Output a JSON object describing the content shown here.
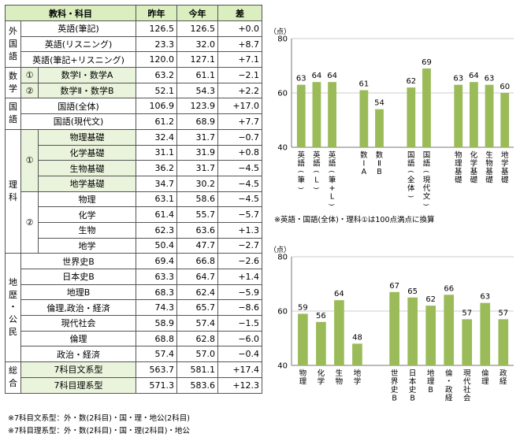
{
  "table": {
    "headers": [
      "教科・科目",
      "昨年",
      "今年",
      "差"
    ],
    "groups": [
      {
        "label": "外国語",
        "rows": [
          {
            "name": "英語(筆記)",
            "last": "126.5",
            "this": "126.5",
            "diff": "+0.0"
          },
          {
            "name": "英語(リスニング)",
            "last": "23.3",
            "this": "32.0",
            "diff": "+8.7"
          },
          {
            "name": "英語(筆記+リスニング)",
            "last": "120.0",
            "this": "127.1",
            "diff": "+7.1"
          }
        ]
      },
      {
        "label": "数学",
        "shaded": true,
        "rows": [
          {
            "mark": "①",
            "name": "数学Ⅰ・数学A",
            "last": "63.2",
            "this": "61.1",
            "diff": "−2.1"
          },
          {
            "mark": "②",
            "name": "数学Ⅱ・数学B",
            "last": "52.1",
            "this": "54.3",
            "diff": "+2.2"
          }
        ]
      },
      {
        "label": "国語",
        "rows": [
          {
            "name": "国語(全体)",
            "last": "106.9",
            "this": "123.9",
            "diff": "+17.0"
          },
          {
            "name": "国語(現代文)",
            "last": "61.2",
            "this": "68.9",
            "diff": "+7.7"
          }
        ]
      },
      {
        "label": "理科",
        "subgroups": [
          {
            "mark": "①",
            "shaded": true,
            "rows": [
              {
                "name": "物理基礎",
                "last": "32.4",
                "this": "31.7",
                "diff": "−0.7"
              },
              {
                "name": "化学基礎",
                "last": "31.1",
                "this": "31.9",
                "diff": "+0.8"
              },
              {
                "name": "生物基礎",
                "last": "36.2",
                "this": "31.7",
                "diff": "−4.5"
              },
              {
                "name": "地学基礎",
                "last": "34.7",
                "this": "30.2",
                "diff": "−4.5"
              }
            ]
          },
          {
            "mark": "②",
            "shaded": false,
            "rows": [
              {
                "name": "物理",
                "last": "63.1",
                "this": "58.6",
                "diff": "−4.5"
              },
              {
                "name": "化学",
                "last": "61.4",
                "this": "55.7",
                "diff": "−5.7"
              },
              {
                "name": "生物",
                "last": "62.3",
                "this": "63.6",
                "diff": "+1.3"
              },
              {
                "name": "地学",
                "last": "50.4",
                "this": "47.7",
                "diff": "−2.7"
              }
            ]
          }
        ]
      },
      {
        "label": "地歴・公民",
        "rows": [
          {
            "name": "世界史B",
            "last": "69.4",
            "this": "66.8",
            "diff": "−2.6"
          },
          {
            "name": "日本史B",
            "last": "63.3",
            "this": "64.7",
            "diff": "+1.4"
          },
          {
            "name": "地理B",
            "last": "68.3",
            "this": "62.4",
            "diff": "−5.9"
          },
          {
            "name": "倫理,政治・経済",
            "last": "74.3",
            "this": "65.7",
            "diff": "−8.6"
          },
          {
            "name": "現代社会",
            "last": "58.9",
            "this": "57.4",
            "diff": "−1.5"
          },
          {
            "name": "倫理",
            "last": "68.8",
            "this": "62.8",
            "diff": "−6.0"
          },
          {
            "name": "政治・経済",
            "last": "57.4",
            "this": "57.0",
            "diff": "−0.4"
          }
        ]
      },
      {
        "label": "総合",
        "shaded": true,
        "rows": [
          {
            "name": "7科目文系型",
            "last": "563.7",
            "this": "581.1",
            "diff": "+17.4"
          },
          {
            "name": "7科目理系型",
            "last": "571.3",
            "this": "583.6",
            "diff": "+12.3"
          }
        ]
      }
    ],
    "footnotes": [
      "※7科目文系型：外・数(2科目)・国・理・地公(2科目)",
      "※7科目理系型：外・数(2科目)・国・理(2科目)・地公"
    ]
  },
  "chart_note": "※英語・国語(全体)・理科①は100点満点に換算",
  "colors": {
    "bar": "#9bbb59",
    "header": "#daeec0",
    "shade": "#eaf3dc"
  },
  "chart_data": [
    {
      "type": "bar",
      "unit": "（点）",
      "ylim": [
        40,
        80
      ],
      "yticks": [
        40,
        60,
        80
      ],
      "bars": [
        {
          "label": "英語(筆)",
          "value": 63
        },
        {
          "label": "英語(L)",
          "value": 64
        },
        {
          "label": "英語(筆+L)",
          "value": 64
        },
        {
          "label": "数ⅠA",
          "value": 61
        },
        {
          "label": "数ⅡB",
          "value": 54
        },
        {
          "label": "国語(全体)",
          "value": 62
        },
        {
          "label": "国語(現代文)",
          "value": 69
        },
        {
          "label": "物理基礎",
          "value": 63
        },
        {
          "label": "化学基礎",
          "value": 64
        },
        {
          "label": "生物基礎",
          "value": 63
        },
        {
          "label": "地学基礎",
          "value": 60
        }
      ],
      "gaps_after": [
        2,
        4,
        6
      ]
    },
    {
      "type": "bar",
      "unit": "（点）",
      "ylim": [
        40,
        80
      ],
      "yticks": [
        40,
        60,
        80
      ],
      "bars": [
        {
          "label": "物理",
          "value": 59
        },
        {
          "label": "化学",
          "value": 56
        },
        {
          "label": "生物",
          "value": 64
        },
        {
          "label": "地学",
          "value": 48
        },
        {
          "label": "世界史B",
          "value": 67
        },
        {
          "label": "日本史B",
          "value": 65
        },
        {
          "label": "地理B",
          "value": 62
        },
        {
          "label": "倫・政経",
          "value": 66
        },
        {
          "label": "現代社会",
          "value": 57
        },
        {
          "label": "倫理",
          "value": 63
        },
        {
          "label": "政経",
          "value": 57
        }
      ],
      "gaps_after": [
        3
      ]
    }
  ]
}
